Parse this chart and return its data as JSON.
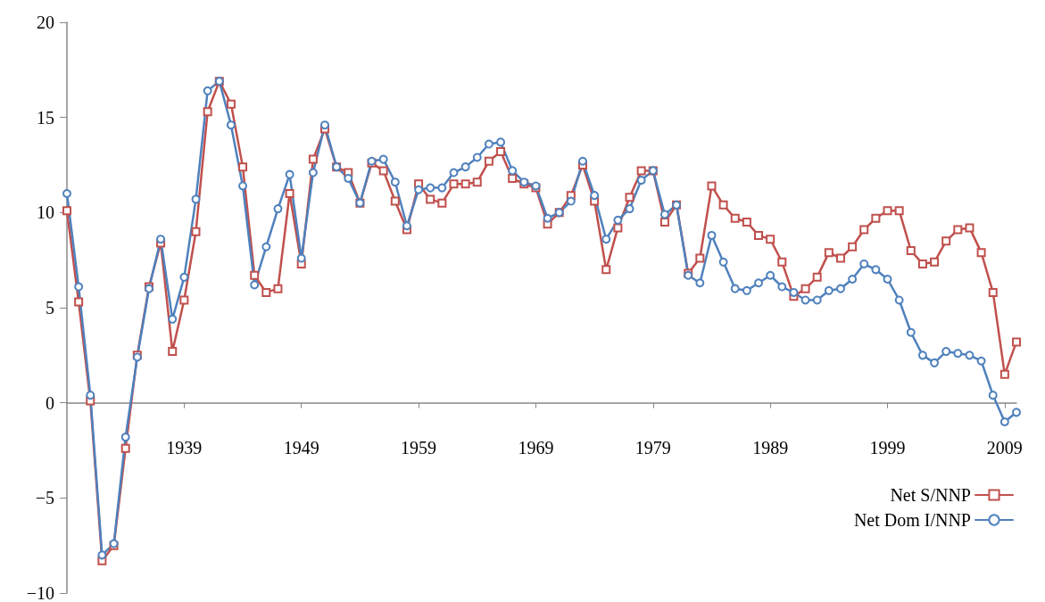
{
  "chart_data": {
    "type": "line",
    "categories": [
      null,
      null,
      null,
      null,
      null,
      null,
      null,
      null,
      null,
      null,
      "1939",
      null,
      null,
      null,
      null,
      null,
      null,
      null,
      null,
      null,
      "1949",
      null,
      null,
      null,
      null,
      null,
      null,
      null,
      null,
      null,
      "1959",
      null,
      null,
      null,
      null,
      null,
      null,
      null,
      null,
      null,
      "1969",
      null,
      null,
      null,
      null,
      null,
      null,
      null,
      null,
      null,
      "1979",
      null,
      null,
      null,
      null,
      null,
      null,
      null,
      null,
      null,
      "1989",
      null,
      null,
      null,
      null,
      null,
      null,
      null,
      null,
      null,
      "1999",
      null,
      null,
      null,
      null,
      null,
      null,
      null,
      null,
      null,
      "2009",
      null
    ],
    "series": [
      {
        "name": "Net S/NNP",
        "color": "#c0504d",
        "marker": "square",
        "values": [
          10.1,
          5.3,
          0.1,
          -8.3,
          -7.5,
          -2.4,
          2.5,
          6.1,
          8.4,
          2.7,
          5.4,
          9.0,
          15.3,
          16.9,
          15.7,
          12.4,
          6.7,
          5.8,
          6.0,
          11.0,
          7.3,
          12.8,
          14.4,
          12.4,
          12.1,
          10.5,
          12.6,
          12.2,
          10.6,
          9.1,
          11.5,
          10.7,
          10.5,
          11.5,
          11.5,
          11.6,
          12.7,
          13.2,
          11.8,
          11.5,
          11.3,
          9.4,
          10.0,
          10.9,
          12.5,
          10.6,
          7.0,
          9.2,
          10.8,
          12.2,
          12.2,
          9.5,
          10.4,
          6.8,
          7.6,
          11.4,
          10.4,
          9.7,
          9.5,
          8.8,
          8.6,
          7.4,
          5.6,
          6.0,
          6.6,
          7.9,
          7.6,
          8.2,
          9.1,
          9.7,
          10.1,
          10.1,
          8.0,
          7.3,
          7.4,
          8.5,
          9.1,
          9.2,
          7.9,
          5.8,
          1.5,
          3.2
        ]
      },
      {
        "name": "Net Dom I/NNP",
        "color": "#4f81bd",
        "marker": "circle",
        "values": [
          11.0,
          6.1,
          0.4,
          -8.0,
          -7.4,
          -1.8,
          2.4,
          6.0,
          8.6,
          4.4,
          6.6,
          10.7,
          16.4,
          16.9,
          14.6,
          11.4,
          6.2,
          8.2,
          10.2,
          12.0,
          7.6,
          12.1,
          14.6,
          12.4,
          11.8,
          10.5,
          12.7,
          12.8,
          11.6,
          9.3,
          11.2,
          11.3,
          11.3,
          12.1,
          12.4,
          12.9,
          13.6,
          13.7,
          12.2,
          11.6,
          11.4,
          9.7,
          10.0,
          10.6,
          12.7,
          10.9,
          8.6,
          9.6,
          10.2,
          11.7,
          12.2,
          9.9,
          10.4,
          6.7,
          6.3,
          8.8,
          7.4,
          6.0,
          5.9,
          6.3,
          6.7,
          6.1,
          5.8,
          5.4,
          5.4,
          5.9,
          6.0,
          6.5,
          7.3,
          7.0,
          6.5,
          5.4,
          3.7,
          2.5,
          2.1,
          2.7,
          2.6,
          2.5,
          2.2,
          0.4,
          -1.0,
          -0.5
        ]
      }
    ],
    "ylim": [
      -10,
      20
    ],
    "yticks": [
      {
        "value": -10,
        "label": "−10"
      },
      {
        "value": -5,
        "label": "−5"
      },
      0,
      5,
      10,
      15,
      20
    ],
    "legend": "bottom right"
  }
}
